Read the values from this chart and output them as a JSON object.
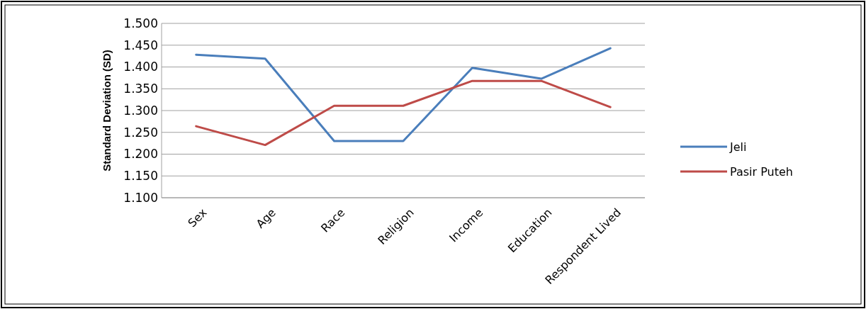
{
  "chart_data": {
    "type": "line",
    "ylabel": "Standard Deviation (SD)",
    "categories": [
      "Sex",
      "Age",
      "Race",
      "Religion",
      "Income",
      "Education",
      "Respondent Lived"
    ],
    "series": [
      {
        "name": "Jeli",
        "color": "#4a7ebb",
        "values": [
          1.428,
          1.419,
          1.23,
          1.23,
          1.398,
          1.373,
          1.443
        ]
      },
      {
        "name": "Pasir Puteh",
        "color": "#be4b48",
        "values": [
          1.264,
          1.221,
          1.311,
          1.311,
          1.368,
          1.368,
          1.308
        ]
      }
    ],
    "ylim": [
      1.1,
      1.5
    ],
    "yticks": [
      {
        "value": 1.1,
        "label": "1.100"
      },
      {
        "value": 1.15,
        "label": "1.150"
      },
      {
        "value": 1.2,
        "label": "1.200"
      },
      {
        "value": 1.25,
        "label": "1.250"
      },
      {
        "value": 1.3,
        "label": "1.300"
      },
      {
        "value": 1.35,
        "label": "1.350"
      },
      {
        "value": 1.4,
        "label": "1.400"
      },
      {
        "value": 1.45,
        "label": "1.450"
      },
      {
        "value": 1.5,
        "label": "1.500"
      }
    ],
    "grid": "y",
    "legend": "right",
    "marker": "none",
    "line_style": "solid"
  }
}
